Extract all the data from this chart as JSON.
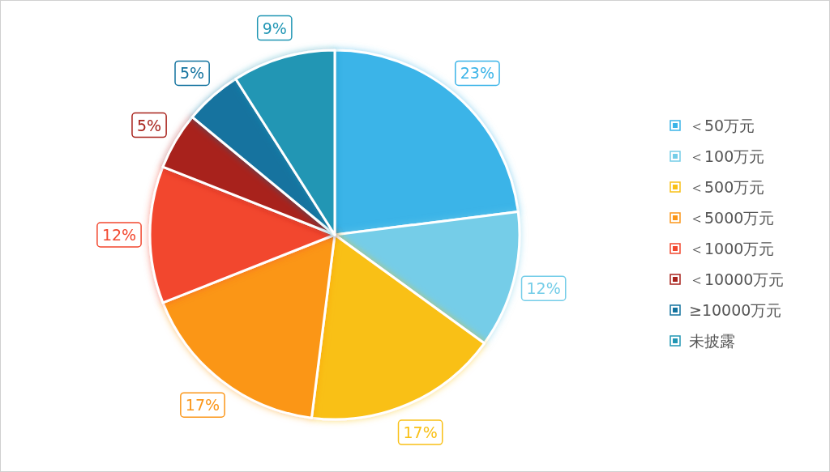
{
  "chart_data": {
    "type": "pie",
    "categories": [
      "＜50万元",
      "＜100万元",
      "＜500万元",
      "＜5000万元",
      "＜1000万元",
      "＜10000万元",
      "≥10000万元",
      "未披露"
    ],
    "values": [
      23,
      12,
      17,
      17,
      12,
      5,
      5,
      9
    ],
    "colors": [
      "#3bb4e8",
      "#74cde8",
      "#f9c016",
      "#fb9618",
      "#f2472e",
      "#a8221b",
      "#13739f",
      "#2196b4"
    ],
    "value_labels": [
      "23%",
      "12%",
      "17%",
      "17%",
      "12%",
      "5%",
      "5%",
      "9%"
    ],
    "legend": "right"
  }
}
